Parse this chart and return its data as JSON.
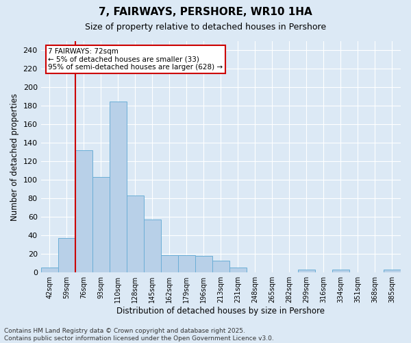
{
  "title": "7, FAIRWAYS, PERSHORE, WR10 1HA",
  "subtitle": "Size of property relative to detached houses in Pershore",
  "xlabel": "Distribution of detached houses by size in Pershore",
  "ylabel": "Number of detached properties",
  "footnote": "Contains HM Land Registry data © Crown copyright and database right 2025.\nContains public sector information licensed under the Open Government Licence v3.0.",
  "categories": [
    "42sqm",
    "59sqm",
    "76sqm",
    "93sqm",
    "110sqm",
    "128sqm",
    "145sqm",
    "162sqm",
    "179sqm",
    "196sqm",
    "213sqm",
    "231sqm",
    "248sqm",
    "265sqm",
    "282sqm",
    "299sqm",
    "316sqm",
    "334sqm",
    "351sqm",
    "368sqm",
    "385sqm"
  ],
  "values": [
    5,
    37,
    132,
    103,
    185,
    83,
    57,
    19,
    19,
    18,
    13,
    5,
    0,
    0,
    0,
    3,
    0,
    3,
    0,
    0,
    3
  ],
  "bar_color": "#b8d0e8",
  "bar_edge_color": "#6baed6",
  "background_color": "#dce9f5",
  "plot_bg_color": "#dce9f5",
  "vline_color": "#cc0000",
  "vline_x": 1.5,
  "annotation_text": "7 FAIRWAYS: 72sqm\n← 5% of detached houses are smaller (33)\n95% of semi-detached houses are larger (628) →",
  "ylim": [
    0,
    250
  ],
  "yticks": [
    0,
    20,
    40,
    60,
    80,
    100,
    120,
    140,
    160,
    180,
    200,
    220,
    240
  ],
  "title_fontsize": 11,
  "subtitle_fontsize": 9,
  "footnote_fontsize": 6.5
}
